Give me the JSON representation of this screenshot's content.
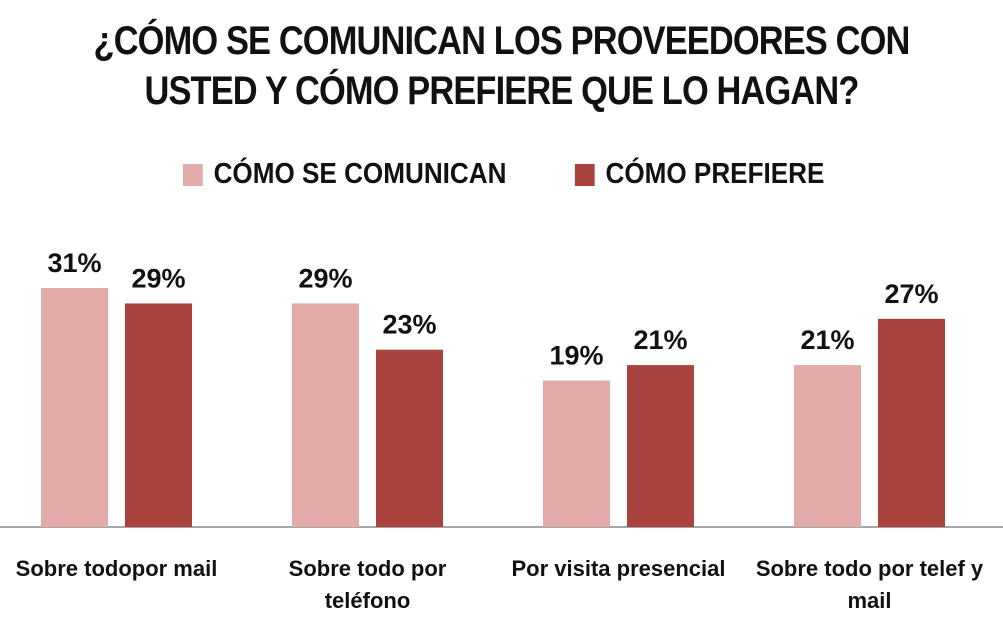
{
  "chart_data": {
    "type": "bar",
    "title": [
      "¿CÓMO SE COMUNICAN LOS PROVEEDORES CON",
      "USTED Y CÓMO PREFIERE QUE LO HAGAN?"
    ],
    "categories": [
      [
        "Sobre todopor mail"
      ],
      [
        "Sobre todo por",
        "teléfono"
      ],
      [
        "Por visita presencial"
      ],
      [
        "Sobre todo por telef y",
        "mail"
      ]
    ],
    "series": [
      {
        "name": "CÓMO SE COMUNICAN",
        "color": "#e2aaa8",
        "values": [
          31,
          29,
          19,
          21
        ],
        "labels": [
          "31%",
          "29%",
          "19%",
          "21%"
        ]
      },
      {
        "name": "CÓMO PREFIERE",
        "color": "#a8433d",
        "values": [
          29,
          23,
          21,
          27
        ],
        "labels": [
          "29%",
          "23%",
          "21%",
          "27%"
        ]
      }
    ],
    "ylim": [
      0,
      31
    ],
    "legend_position": "top",
    "grid": false
  }
}
